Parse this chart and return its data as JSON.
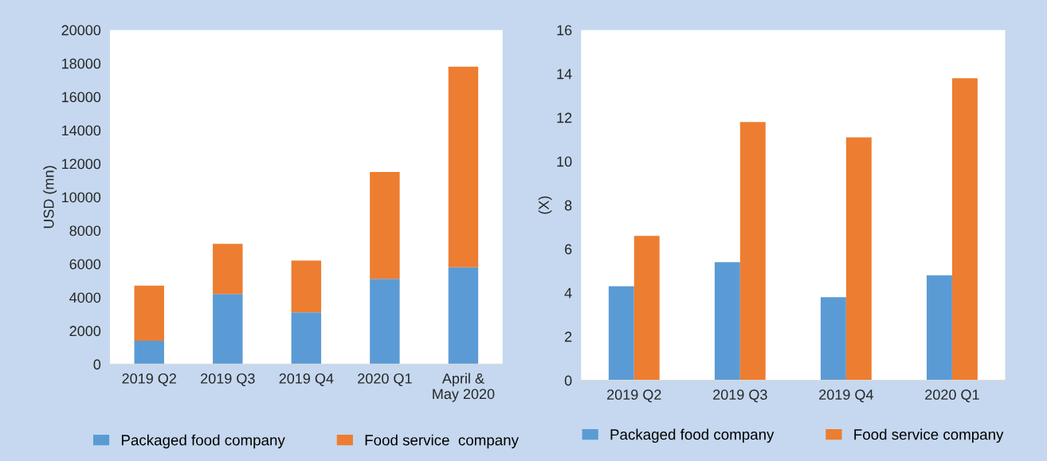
{
  "chart_data": [
    {
      "type": "bar",
      "stacked": true,
      "ylabel": "USD (mn)",
      "categories": [
        "2019 Q2",
        "2019 Q3",
        "2019 Q4",
        "2020 Q1",
        "April &\nMay 2020"
      ],
      "series": [
        {
          "name": "Packaged food company",
          "color": "#5b9bd5",
          "values": [
            1400,
            4200,
            3100,
            5100,
            5800
          ]
        },
        {
          "name": "Food service  company",
          "color": "#ed7d31",
          "values": [
            3300,
            3000,
            3100,
            6400,
            12000
          ]
        }
      ],
      "ylim": [
        0,
        20000
      ],
      "yticks": [
        0,
        2000,
        4000,
        6000,
        8000,
        10000,
        12000,
        14000,
        16000,
        18000,
        20000
      ],
      "grid": false,
      "legend": "bottom"
    },
    {
      "type": "bar",
      "ylabel": "(X)",
      "categories": [
        "2019 Q2",
        "2019 Q3",
        "2019 Q4",
        "2020 Q1"
      ],
      "series": [
        {
          "name": "Packaged food company",
          "color": "#5b9bd5",
          "values": [
            4.3,
            5.4,
            3.8,
            4.8
          ]
        },
        {
          "name": "Food service company",
          "color": "#ed7d31",
          "values": [
            6.6,
            11.8,
            11.1,
            13.8
          ]
        }
      ],
      "ylim": [
        0,
        16
      ],
      "yticks": [
        0,
        2,
        4,
        6,
        8,
        10,
        12,
        14,
        16
      ],
      "grid": false,
      "legend": "bottom"
    }
  ]
}
